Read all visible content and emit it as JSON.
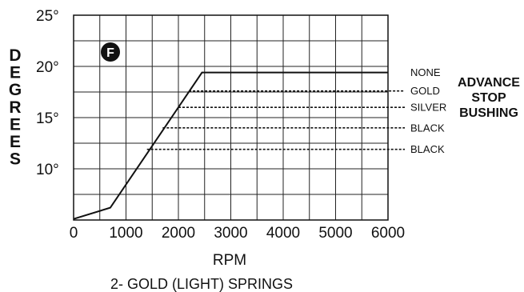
{
  "chart_data": {
    "type": "line",
    "ylabel": "DEGREES",
    "xlabel": "RPM",
    "caption": "2- GOLD (LIGHT) SPRINGS",
    "badge": "F",
    "x_ticks": [
      "0",
      "1000",
      "2000",
      "3000",
      "4000",
      "5000",
      "6000"
    ],
    "y_ticks": [
      "10°",
      "15°",
      "20°",
      "25°"
    ],
    "xlim": [
      0,
      6000
    ],
    "ylim": [
      5,
      25
    ],
    "y_tick_values": [
      10,
      15,
      20,
      25
    ],
    "x_tick_values": [
      0,
      1000,
      2000,
      3000,
      4000,
      5000,
      6000
    ],
    "grid": true,
    "side_title": [
      "ADVANCE",
      "STOP",
      "BUSHING"
    ],
    "series": [
      {
        "name": "NONE",
        "style": "solid",
        "points": [
          [
            0,
            5.1
          ],
          [
            700,
            6.2
          ],
          [
            2450,
            19.4
          ],
          [
            6000,
            19.4
          ]
        ]
      },
      {
        "name": "GOLD",
        "style": "dashed",
        "y": 17.6,
        "x_start": 2200
      },
      {
        "name": "SILVER",
        "style": "dashed",
        "y": 16.0,
        "x_start": 2000
      },
      {
        "name": "BLACK",
        "style": "dashed",
        "y": 14.0,
        "x_start": 1700
      },
      {
        "name": "BLACK",
        "style": "dashed",
        "y": 11.9,
        "x_start": 1400
      }
    ]
  }
}
